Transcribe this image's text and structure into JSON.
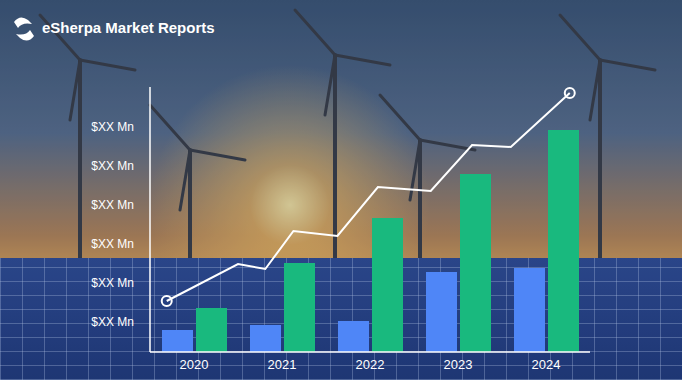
{
  "header": {
    "brand": "eSherpa Market Reports"
  },
  "chart_data": {
    "type": "bar",
    "categories": [
      "2020",
      "2021",
      "2022",
      "2023",
      "2024"
    ],
    "ylim": [
      0,
      265
    ],
    "yticks": [
      {
        "value": 30,
        "label": "$XX Mn"
      },
      {
        "value": 69,
        "label": "$XX Mn"
      },
      {
        "value": 108,
        "label": "$XX Mn"
      },
      {
        "value": 147,
        "label": "$XX Mn"
      },
      {
        "value": 186,
        "label": "$XX Mn"
      },
      {
        "value": 225,
        "label": "$XX Mn"
      }
    ],
    "xlim": [
      2019.5,
      2024.5
    ],
    "grid": false,
    "series": [
      {
        "type": "bar",
        "color": "#4f86f7",
        "values": [
          22,
          27,
          31,
          80,
          84
        ]
      },
      {
        "type": "bar",
        "color": "#19b97e",
        "values": [
          44,
          89,
          134,
          178,
          222
        ]
      },
      {
        "type": "line",
        "color": "#ffffff",
        "marker": "circle",
        "x": [
          2019.69,
          2020.5,
          2020.81,
          2021.13,
          2021.63,
          2022.09,
          2022.69,
          2023.16,
          2023.6,
          2024.27
        ],
        "values": [
          51,
          88,
          83,
          121,
          116,
          165,
          161,
          207,
          205,
          259
        ]
      }
    ]
  }
}
